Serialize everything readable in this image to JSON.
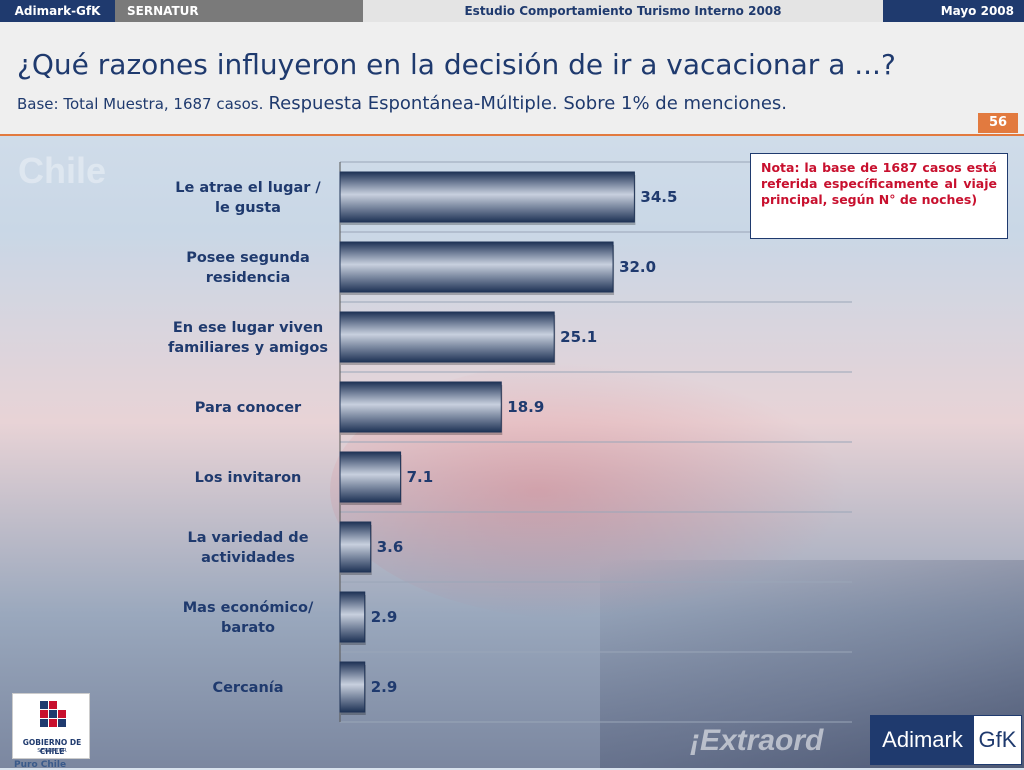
{
  "topbar": {
    "left_label": "Adimark-GfK",
    "client": "SERNATUR",
    "study": "Estudio Comportamiento Turismo Interno 2008",
    "date": "Mayo 2008"
  },
  "header": {
    "title": "¿Qué razones influyeron en la decisión de ir a vacacionar a ...?",
    "base": "Base: Total Muestra, 1687 casos.",
    "response": "Respuesta Espontánea-Múltiple. Sobre 1% de menciones.",
    "page_number": "56"
  },
  "note": "Nota: la base de 1687 casos está referida específicamente al viaje principal, según N° de noches)",
  "background": {
    "chile_text": "Chile",
    "extra_text": "¡Extraord"
  },
  "logos": {
    "gov_line1": "GOBIERNO DE CHILE",
    "gov_line2": "SERNATUR",
    "puro_chile": "Puro Chile",
    "adimark": "Adimark",
    "gfk": "GfK"
  },
  "colors": {
    "brand_navy": "#1f3a6e",
    "accent_orange": "#e27a3f",
    "note_red": "#c8102e",
    "bar_dark": "#1f3356",
    "bar_light": "#c8d0de"
  },
  "chart_data": {
    "type": "bar",
    "orientation": "horizontal",
    "categories": [
      [
        "Le atrae el lugar /",
        "le gusta"
      ],
      [
        "Posee segunda",
        "residencia"
      ],
      [
        "En ese lugar viven",
        "familiares y amigos"
      ],
      [
        "Para conocer"
      ],
      [
        "Los invitaron"
      ],
      [
        "La variedad de",
        "actividades"
      ],
      [
        "Mas económico/",
        "barato"
      ],
      [
        "Cercanía"
      ]
    ],
    "values": [
      34.5,
      32.0,
      25.1,
      18.9,
      7.1,
      3.6,
      2.9,
      2.9
    ],
    "value_labels": [
      "34.5",
      "32.0",
      "25.1",
      "18.9",
      "7.1",
      "3.6",
      "2.9",
      "2.9"
    ],
    "xlim": [
      0,
      60
    ],
    "grid": true
  }
}
